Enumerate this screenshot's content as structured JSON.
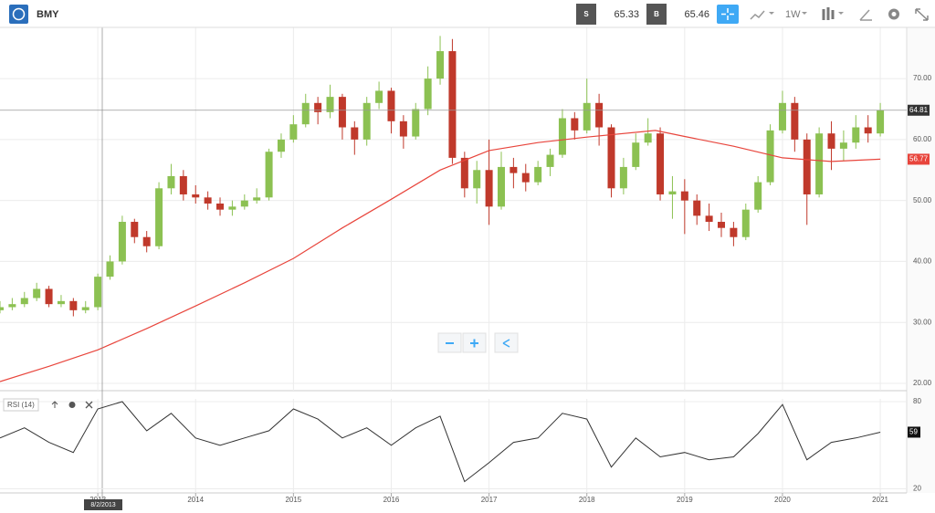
{
  "toolbar": {
    "symbol": "BMY",
    "sell_label": "S",
    "sell_price": "65.33",
    "buy_label": "B",
    "buy_price": "65.46",
    "interval": "1W"
  },
  "chart_data": [
    {
      "type": "candlestick",
      "x": [
        2012.0,
        2012.125,
        2012.25,
        2012.375,
        2012.5,
        2012.625,
        2012.75,
        2012.875,
        2013.0,
        2013.125,
        2013.25,
        2013.375,
        2013.5,
        2013.625,
        2013.75,
        2013.875,
        2014.0,
        2014.125,
        2014.25,
        2014.375,
        2014.5,
        2014.625,
        2014.75,
        2014.875,
        2015.0,
        2015.125,
        2015.25,
        2015.375,
        2015.5,
        2015.625,
        2015.75,
        2015.875,
        2016.0,
        2016.125,
        2016.25,
        2016.375,
        2016.5,
        2016.625,
        2016.75,
        2016.875,
        2017.0,
        2017.125,
        2017.25,
        2017.375,
        2017.5,
        2017.625,
        2017.75,
        2017.875,
        2018.0,
        2018.125,
        2018.25,
        2018.375,
        2018.5,
        2018.625,
        2018.75,
        2018.875,
        2019.0,
        2019.125,
        2019.25,
        2019.375,
        2019.5,
        2019.625,
        2019.75,
        2019.875,
        2020.0,
        2020.125,
        2020.25,
        2020.375,
        2020.5,
        2020.625,
        2020.75,
        2020.875,
        2021.0
      ],
      "open": [
        32.0,
        32.5,
        33.0,
        34.0,
        35.5,
        33.0,
        33.5,
        32.0,
        32.5,
        37.5,
        40.0,
        46.5,
        44.0,
        42.5,
        52.0,
        54.0,
        51.0,
        50.5,
        49.5,
        48.5,
        49.0,
        50.0,
        50.5,
        58.0,
        60.0,
        62.5,
        66.0,
        64.5,
        67.0,
        62.0,
        60.0,
        66.0,
        68.0,
        63.0,
        60.5,
        65.0,
        70.0,
        74.5,
        57.0,
        52.0,
        55.0,
        49.0,
        55.5,
        54.5,
        53.0,
        55.5,
        57.5,
        63.5,
        61.5,
        66.0,
        62.0,
        52.0,
        55.5,
        59.5,
        61.0,
        51.0,
        51.5,
        50.0,
        47.5,
        46.5,
        45.5,
        44.0,
        48.5,
        53.0,
        61.5,
        66.0,
        60.0,
        51.0,
        61.0,
        58.5,
        59.5,
        62.0,
        61.0
      ],
      "high": [
        33.5,
        34,
        35,
        36.5,
        36,
        34.5,
        34,
        33.5,
        38,
        41,
        47.5,
        47,
        45,
        53,
        56,
        55,
        52.5,
        51.5,
        50.5,
        50,
        51,
        52,
        58.5,
        61,
        64,
        67.5,
        67,
        69,
        67.5,
        63,
        67,
        69.5,
        68.5,
        64,
        66,
        72,
        77,
        76.5,
        58,
        56.5,
        60,
        58,
        57,
        56,
        56.5,
        58.5,
        65,
        64.5,
        70,
        67.5,
        62.5,
        57,
        61,
        63.5,
        62,
        54,
        53.5,
        51,
        49.5,
        48,
        46.5,
        49.5,
        54,
        62.5,
        68,
        67,
        61,
        62,
        63,
        61.5,
        64,
        64,
        66
      ],
      "low": [
        31.5,
        32,
        32.5,
        33.5,
        32.5,
        32.5,
        31,
        31.5,
        32,
        37,
        39.5,
        43,
        41.5,
        42,
        51,
        50,
        49.5,
        48.5,
        47.5,
        47.5,
        48.5,
        49.5,
        50,
        57,
        59.5,
        62,
        62.5,
        63.5,
        60,
        57.5,
        59,
        65,
        61,
        58.5,
        60,
        64,
        69,
        56,
        50.5,
        49.5,
        46,
        48.5,
        52,
        51.5,
        52.5,
        54,
        57,
        60,
        61,
        59,
        50.5,
        51,
        55,
        59,
        50,
        47,
        44.5,
        46,
        45,
        44,
        42.5,
        43.5,
        48,
        52.5,
        61,
        58,
        46,
        50.5,
        55,
        56.5,
        58.5,
        59.5,
        60.5
      ],
      "close": [
        32.5,
        33.0,
        34.0,
        35.5,
        33.0,
        33.5,
        32.0,
        32.5,
        37.5,
        40.0,
        46.5,
        44.0,
        42.5,
        52.0,
        54.0,
        51.0,
        50.5,
        49.5,
        48.5,
        49.0,
        50.0,
        50.5,
        58.0,
        60.0,
        62.5,
        66.0,
        64.5,
        67.0,
        62.0,
        60.0,
        66.0,
        68.0,
        63.0,
        60.5,
        65.0,
        70.0,
        74.5,
        57.0,
        52.0,
        55.0,
        49.0,
        55.5,
        54.5,
        53.0,
        55.5,
        57.5,
        63.5,
        61.5,
        66.0,
        62.0,
        52.0,
        55.5,
        59.5,
        61.0,
        51.0,
        51.5,
        50.0,
        47.5,
        46.5,
        45.5,
        44.0,
        48.5,
        53.0,
        61.5,
        66.0,
        60.0,
        51.0,
        61.0,
        58.5,
        59.5,
        62.0,
        61.0,
        64.81
      ],
      "up_color": "#8cc152",
      "down_color": "#c0392b",
      "ma": {
        "color": "#e8453c",
        "x": [
          2012.0,
          2012.5,
          2013.0,
          2013.5,
          2014.0,
          2014.5,
          2015.0,
          2015.5,
          2016.0,
          2016.5,
          2017.0,
          2017.5,
          2018.0,
          2018.7,
          2019.0,
          2019.5,
          2020.0,
          2020.5,
          2021.0
        ],
        "values": [
          20.3,
          22.8,
          25.5,
          29,
          32.7,
          36.5,
          40.5,
          45.5,
          50.2,
          55.0,
          58.2,
          59.5,
          60.4,
          61.5,
          60.5,
          58.9,
          57.0,
          56.4,
          56.77
        ]
      },
      "xlim": [
        2012.0,
        2021.27
      ],
      "xticks": [
        2013,
        2014,
        2015,
        2016,
        2017,
        2018,
        2019,
        2020,
        2021
      ],
      "ylim": [
        18.8,
        78.4
      ],
      "yticks": [
        {
          "value": 20,
          "label": "20.00"
        },
        {
          "value": 30,
          "label": "30.00"
        },
        {
          "value": 40,
          "label": "40.00"
        },
        {
          "value": 50,
          "label": "50.00"
        },
        {
          "value": 60,
          "label": "60.00"
        },
        {
          "value": 70,
          "label": "70.00"
        }
      ],
      "grid": true,
      "crosshair_label": "8/2/2013"
    },
    {
      "type": "line",
      "title": "RSI (14)",
      "color": "#333333",
      "x": [
        2012.0,
        2012.25,
        2012.5,
        2012.75,
        2013.0,
        2013.25,
        2013.5,
        2013.75,
        2014.0,
        2014.25,
        2014.5,
        2014.75,
        2015.0,
        2015.25,
        2015.5,
        2015.75,
        2016.0,
        2016.25,
        2016.5,
        2016.75,
        2017.0,
        2017.25,
        2017.5,
        2017.75,
        2018.0,
        2018.25,
        2018.5,
        2018.75,
        2019.0,
        2019.25,
        2019.5,
        2019.75,
        2020.0,
        2020.25,
        2020.5,
        2020.75,
        2021.0
      ],
      "values": [
        55,
        62,
        52,
        45,
        75,
        80,
        60,
        72,
        55,
        50,
        55,
        60,
        75,
        68,
        55,
        62,
        50,
        62,
        70,
        25,
        38,
        52,
        55,
        72,
        68,
        35,
        55,
        42,
        45,
        40,
        42,
        58,
        78,
        40,
        52,
        55,
        59
      ],
      "xlim": [
        2012.0,
        2021.27
      ],
      "ylim": [
        17.2,
        81.9
      ],
      "yticks": [
        20,
        80
      ],
      "grid": true
    }
  ]
}
